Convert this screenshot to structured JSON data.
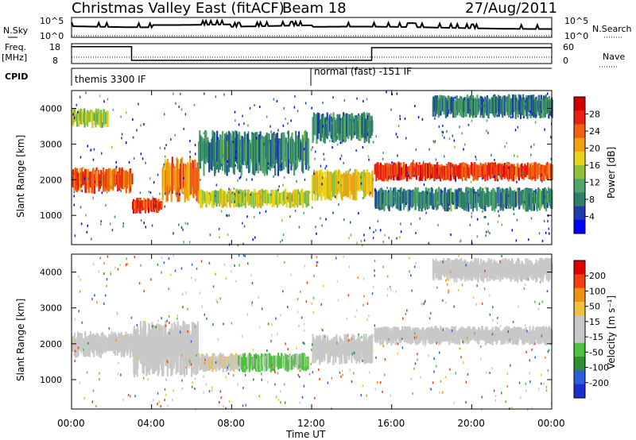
{
  "header": {
    "title": "Christmas Valley East (fitACF)",
    "beam": "Beam 18",
    "date": "27/Aug/2011"
  },
  "params": {
    "nsky_label": "N.Sky",
    "nsky_ticks": [
      "10^5",
      "10^0"
    ],
    "nsky_right_ticks": [
      "10^5",
      "10^0"
    ],
    "nsearch_label": "N.Search",
    "freq_label": "Freq.",
    "freq_unit": "[MHz]",
    "freq_ticks": [
      "18",
      "8"
    ],
    "nave_ticks": [
      "60",
      "0"
    ],
    "nave_label": "Nave",
    "cpid_label": "CPID",
    "cpid_segments": [
      {
        "label": "themis 3300 IF",
        "start_hour": 0,
        "end_hour": 12
      },
      {
        "label": "normal (fast) -151 IF",
        "start_hour": 12,
        "end_hour": 24
      }
    ],
    "freq_steps": [
      {
        "start_hour": 0,
        "end_hour": 3,
        "value": 16.5
      },
      {
        "start_hour": 3,
        "end_hour": 12,
        "value": 9.6
      },
      {
        "start_hour": 12,
        "end_hour": 15,
        "value": 9.6
      },
      {
        "start_hour": 15,
        "end_hour": 24,
        "value": 16.0
      }
    ]
  },
  "panels": {
    "power": {
      "ylabel": "Slant Range [km]",
      "yticks": [
        "1000",
        "2000",
        "3000",
        "4000"
      ],
      "colorbar_label": "Power [dB]",
      "colorbar_ticks": [
        "28",
        "24",
        "20",
        "16",
        "12",
        "8",
        "4"
      ],
      "colors": [
        "#0000ff",
        "#1e3caa",
        "#2f7f6a",
        "#4fa76a",
        "#8fc23a",
        "#e8d21a",
        "#f0a010",
        "#f06010",
        "#e82010",
        "#d00000"
      ]
    },
    "velocity": {
      "ylabel": "Slant Range [km]",
      "yticks": [
        "1000",
        "2000",
        "3000",
        "4000"
      ],
      "colorbar_label": "Velocity [m s⁻¹]",
      "colorbar_ticks": [
        "200",
        "100",
        "50",
        "15",
        "-15",
        "-50",
        "-100",
        "-200"
      ],
      "colors": [
        "#1a2fd0",
        "#2b5fe0",
        "#2f8f30",
        "#50c040",
        "#c8c8c8",
        "#c8c8c8",
        "#f0c040",
        "#f09010",
        "#f04010",
        "#e00000"
      ]
    }
  },
  "xaxis": {
    "ticks": [
      "00:00",
      "04:00",
      "08:00",
      "12:00",
      "16:00",
      "20:00",
      "00:00"
    ],
    "label": "Time UT"
  },
  "chart_data": {
    "type": "heatmap",
    "x_range_hours": [
      0,
      24
    ],
    "y_range_km": [
      180,
      4500
    ],
    "power_scale_db": [
      0,
      32
    ],
    "velocity_scale_ms": [
      -250,
      250
    ],
    "power_bands": [
      {
        "h0": 0.0,
        "h1": 3.0,
        "km0": 1600,
        "km1": 2350,
        "power": 24
      },
      {
        "h0": 0.0,
        "h1": 1.8,
        "km0": 3450,
        "km1": 4000,
        "power": 15
      },
      {
        "h0": 3.0,
        "h1": 4.5,
        "km0": 1050,
        "km1": 1500,
        "power": 26
      },
      {
        "h0": 4.5,
        "h1": 6.3,
        "km0": 1350,
        "km1": 2650,
        "power": 22
      },
      {
        "h0": 6.3,
        "h1": 11.8,
        "km0": 1200,
        "km1": 1750,
        "power": 16
      },
      {
        "h0": 6.3,
        "h1": 11.8,
        "km0": 2100,
        "km1": 3400,
        "power": 9
      },
      {
        "h0": 12.0,
        "h1": 15.0,
        "km0": 1400,
        "km1": 2300,
        "power": 18
      },
      {
        "h0": 12.0,
        "h1": 15.0,
        "km0": 3000,
        "km1": 3900,
        "power": 9
      },
      {
        "h0": 15.1,
        "h1": 24.0,
        "km0": 1950,
        "km1": 2500,
        "power": 26
      },
      {
        "h0": 15.1,
        "h1": 24.0,
        "km0": 1100,
        "km1": 1800,
        "power": 9
      },
      {
        "h0": 18.0,
        "h1": 24.0,
        "km0": 3700,
        "km1": 4400,
        "power": 8
      }
    ],
    "velocity_bands": [
      {
        "h0": 0.0,
        "h1": 3.0,
        "km0": 1600,
        "km1": 2350,
        "velocity": 0
      },
      {
        "h0": 3.0,
        "h1": 6.3,
        "km0": 1050,
        "km1": 2650,
        "velocity": 0
      },
      {
        "h0": 6.3,
        "h1": 8.3,
        "km0": 1200,
        "km1": 1750,
        "velocity": 40
      },
      {
        "h0": 8.3,
        "h1": 11.8,
        "km0": 1200,
        "km1": 1750,
        "velocity": -60
      },
      {
        "h0": 12.0,
        "h1": 15.0,
        "km0": 1400,
        "km1": 2300,
        "velocity": -20
      },
      {
        "h0": 15.1,
        "h1": 24.0,
        "km0": 1950,
        "km1": 2500,
        "velocity": 0
      },
      {
        "h0": 18.0,
        "h1": 24.0,
        "km0": 3700,
        "km1": 4400,
        "velocity": 0
      }
    ]
  }
}
